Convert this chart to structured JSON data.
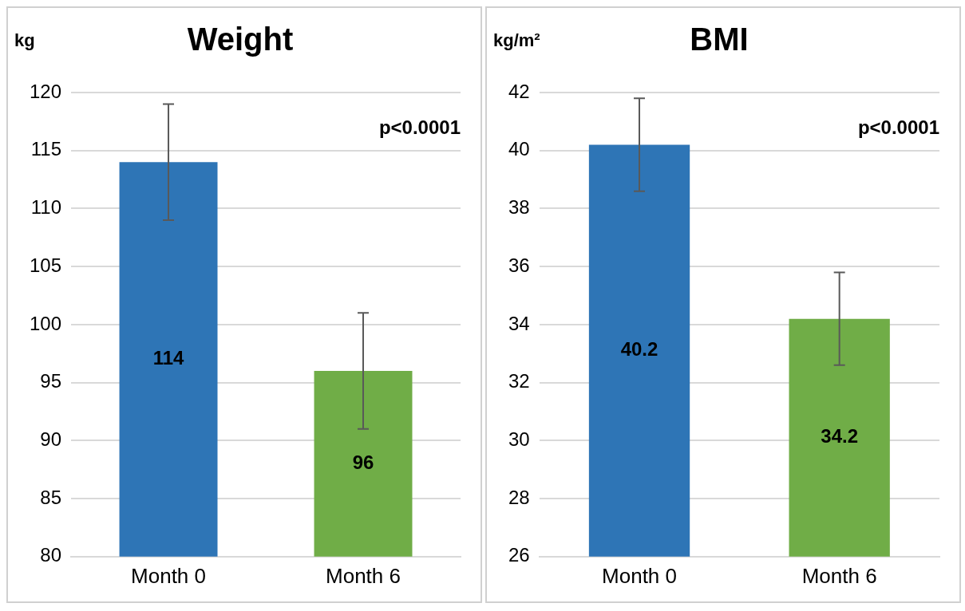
{
  "chart_data": [
    {
      "type": "bar",
      "title": "Weight",
      "ylabel": "kg",
      "categories": [
        "Month 0",
        "Month 6"
      ],
      "values": [
        114,
        96
      ],
      "colors": [
        "#2e75b6",
        "#70ad47"
      ],
      "errors": [
        5,
        5
      ],
      "ylim": [
        80,
        120
      ],
      "yticks": [
        80,
        85,
        90,
        95,
        100,
        105,
        110,
        115,
        120
      ],
      "grid": "y",
      "legend": false,
      "data_labels": true,
      "annotations": [
        "p<0.0001"
      ]
    },
    {
      "type": "bar",
      "title": "BMI",
      "ylabel": "kg/m²",
      "categories": [
        "Month 0",
        "Month 6"
      ],
      "values": [
        40.2,
        34.2
      ],
      "colors": [
        "#2e75b6",
        "#70ad47"
      ],
      "errors": [
        1.6,
        1.6
      ],
      "ylim": [
        26,
        42
      ],
      "yticks": [
        26,
        28,
        30,
        32,
        34,
        36,
        38,
        40,
        42
      ],
      "grid": "y",
      "legend": false,
      "data_labels": true,
      "annotations": [
        "p<0.0001"
      ]
    }
  ]
}
